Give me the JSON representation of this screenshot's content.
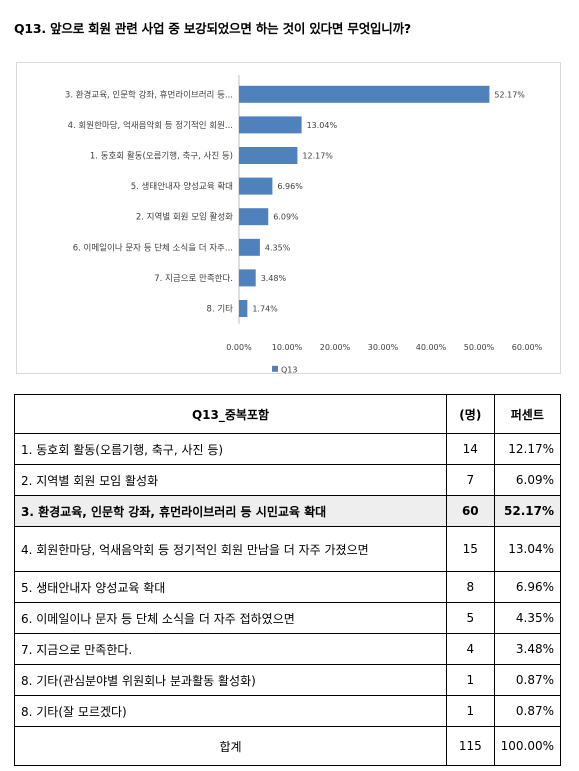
{
  "title": "Q13. 앞으로 회원 관련 사업 중 보강되었으면 하는 것이 있다면 무엇입니까?",
  "chart_data": {
    "type": "bar",
    "orientation": "horizontal",
    "categories": [
      "3. 환경교육, 인문학 강좌, 휴먼라이브러리 등...",
      "4. 회원한마당, 억새음악회 등 정기적인 회원...",
      "1. 동호회 활동(오름기행, 축구, 사진 등)",
      "5. 생태안내자 양성교육 확대",
      "2. 지역별 회원 모임 활성화",
      "6. 이메일이나 문자 등 단체 소식을 더 자주...",
      "7. 지금으로 만족한다.",
      "8. 기타"
    ],
    "series": [
      {
        "name": "Q13",
        "values": [
          52.17,
          13.04,
          12.17,
          6.96,
          6.09,
          4.35,
          3.48,
          1.74
        ]
      }
    ],
    "value_labels": [
      "52.17%",
      "13.04%",
      "12.17%",
      "6.96%",
      "6.09%",
      "4.35%",
      "3.48%",
      "1.74%"
    ],
    "xlim": [
      0,
      60
    ],
    "x_ticks": [
      "0.00%",
      "10.00%",
      "20.00%",
      "30.00%",
      "40.00%",
      "50.00%",
      "60.00%"
    ],
    "legend_position": "bottom",
    "grid": false,
    "color": "#4f81bd"
  },
  "table": {
    "headers": [
      "Q13_중복포함",
      "(명)",
      "퍼센트"
    ],
    "rows": [
      {
        "label": "1. 동호회 활동(오름기행, 축구, 사진 등)",
        "count": "14",
        "pct": "12.17%"
      },
      {
        "label": "2. 지역별 회원 모임 활성화",
        "count": "7",
        "pct": "6.09%"
      },
      {
        "label": "3. 환경교육, 인문학 강좌, 휴먼라이브러리 등 시민교육 확대",
        "count": "60",
        "pct": "52.17%",
        "highlight": true
      },
      {
        "label": "4. 회원한마당, 억새음악회 등 정기적인 회원 만남을 더 자주 가졌으면",
        "count": "15",
        "pct": "13.04%"
      },
      {
        "label": "5. 생태안내자 양성교육 확대",
        "count": "8",
        "pct": "6.96%"
      },
      {
        "label": "6. 이메일이나 문자 등 단체 소식을 더 자주 접하였으면",
        "count": "5",
        "pct": "4.35%"
      },
      {
        "label": "7. 지금으로 만족한다.",
        "count": "4",
        "pct": "3.48%"
      },
      {
        "label": "8. 기타(관심분야별 위원회나 분과활동 활성화)",
        "count": "1",
        "pct": "0.87%"
      },
      {
        "label": "8. 기타(잘 모르겠다)",
        "count": "1",
        "pct": "0.87%"
      }
    ],
    "total": {
      "label": "합계",
      "count": "115",
      "pct": "100.00%"
    }
  }
}
